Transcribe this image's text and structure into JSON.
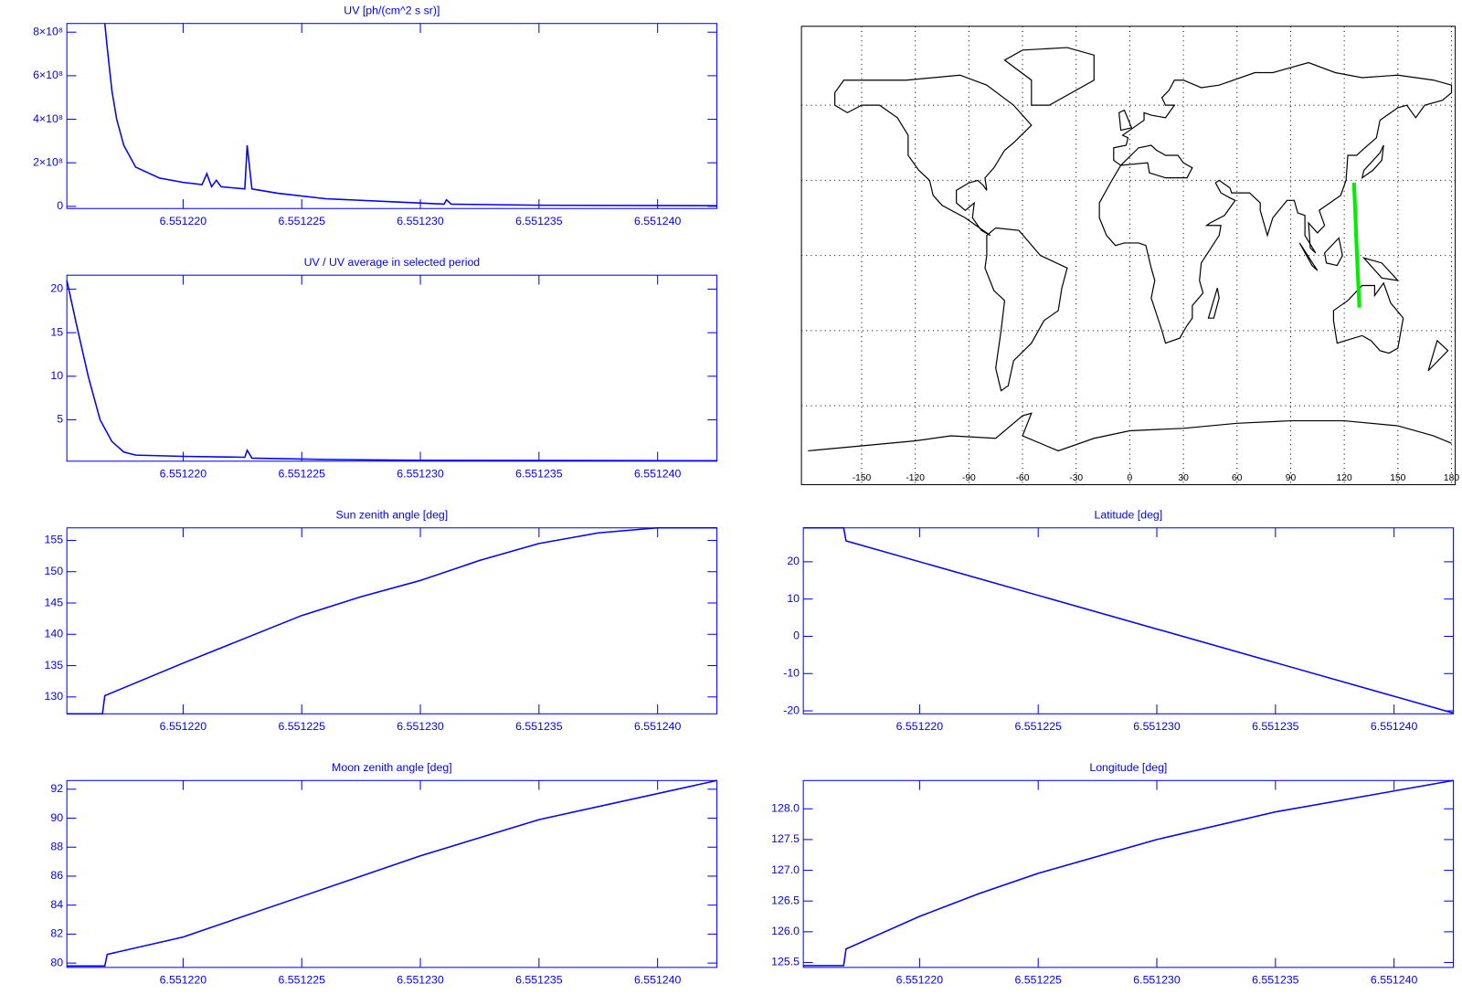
{
  "chart_data": [
    {
      "type": "line",
      "title": "UV [ph/(cm^2 s sr)]",
      "color": "#0000ff",
      "x": [
        6.5512167,
        6.5512168,
        6.551217,
        6.5512172,
        6.5512175,
        6.551218,
        6.551219,
        6.55122,
        6.5512208,
        6.551221,
        6.5512212,
        6.5512214,
        6.5512216,
        6.5512226,
        6.5512227,
        6.5512229,
        6.551224,
        6.551226,
        6.551229,
        6.551231,
        6.5512311,
        6.5512313,
        6.551235,
        6.5512425
      ],
      "values": [
        840000000,
        730000000,
        530000000,
        400000000,
        280000000,
        180000000,
        130000000,
        110000000,
        100000000,
        150000000,
        90000000,
        120000000,
        90000000,
        80000000,
        280000000,
        80000000,
        60000000,
        35000000,
        20000000,
        10000000,
        30000000,
        10000000,
        5000000,
        3000000
      ],
      "xlim": [
        6.5512151,
        6.5512425
      ],
      "xticks": [
        {
          "value": 6.55122,
          "label": "6.551220"
        },
        {
          "value": 6.551225,
          "label": "6.551225"
        },
        {
          "value": 6.55123,
          "label": "6.551230"
        },
        {
          "value": 6.551235,
          "label": "6.551235"
        },
        {
          "value": 6.55124,
          "label": "6.551240"
        }
      ],
      "ylim": [
        -10000000,
        840000000
      ],
      "yticks": [
        0,
        {
          "value": 200000000,
          "label": "2×10⁸"
        },
        {
          "value": 400000000,
          "label": "4×10⁸"
        },
        {
          "value": 600000000,
          "label": "6×10⁸"
        },
        {
          "value": 800000000,
          "label": "8×10⁸"
        }
      ]
    },
    {
      "type": "line",
      "title": "UV / UV average in selected period",
      "color": "#0000ff",
      "x": [
        6.5512151,
        6.5512155,
        6.551216,
        6.5512165,
        6.551217,
        6.5512175,
        6.551218,
        6.55122,
        6.5512226,
        6.5512227,
        6.5512229,
        6.551226,
        6.55123,
        6.5512425
      ],
      "values": [
        21,
        16,
        10,
        5,
        2.5,
        1.3,
        0.95,
        0.8,
        0.7,
        1.5,
        0.6,
        0.45,
        0.35,
        0.3
      ],
      "xlim": [
        6.5512151,
        6.5512425
      ],
      "xticks": [
        {
          "value": 6.55122,
          "label": "6.551220"
        },
        {
          "value": 6.551225,
          "label": "6.551225"
        },
        {
          "value": 6.55123,
          "label": "6.551230"
        },
        {
          "value": 6.551235,
          "label": "6.551235"
        },
        {
          "value": 6.55124,
          "label": "6.551240"
        }
      ],
      "ylim": [
        0.25,
        21.6
      ],
      "yticks": [
        5,
        10,
        15,
        20
      ]
    },
    {
      "type": "line",
      "title": "Sun zenith angle [deg]",
      "color": "#0000ff",
      "x": [
        6.5512151,
        6.5512166,
        6.5512167,
        6.55122,
        6.551225,
        6.5512275,
        6.55123,
        6.5512325,
        6.551235,
        6.5512375,
        6.55124,
        6.5512425
      ],
      "values": [
        127.3,
        127.3,
        130.2,
        135.4,
        143.0,
        146.0,
        148.6,
        151.8,
        154.5,
        156.2,
        157.0,
        157.0
      ],
      "xlim": [
        6.5512151,
        6.5512425
      ],
      "xticks": [
        {
          "value": 6.55122,
          "label": "6.551220"
        },
        {
          "value": 6.551225,
          "label": "6.551225"
        },
        {
          "value": 6.55123,
          "label": "6.551230"
        },
        {
          "value": 6.551235,
          "label": "6.551235"
        },
        {
          "value": 6.55124,
          "label": "6.551240"
        }
      ],
      "ylim": [
        127.3,
        157.0
      ],
      "yticks": [
        130,
        135,
        140,
        145,
        150,
        155
      ]
    },
    {
      "type": "line",
      "title": "Latitude [deg]",
      "color": "#0000ff",
      "x": [
        6.5512151,
        6.5512168,
        6.5512169,
        6.5512425
      ],
      "values": [
        29.1,
        29.1,
        25.6,
        -20.6
      ],
      "xlim": [
        6.5512151,
        6.5512425
      ],
      "xticks": [
        {
          "value": 6.55122,
          "label": "6.551220"
        },
        {
          "value": 6.551225,
          "label": "6.551225"
        },
        {
          "value": 6.55123,
          "label": "6.551230"
        },
        {
          "value": 6.551235,
          "label": "6.551235"
        },
        {
          "value": 6.55124,
          "label": "6.551240"
        }
      ],
      "ylim": [
        -20.8,
        29.1
      ],
      "yticks": [
        -20,
        -10,
        0,
        10,
        20
      ]
    },
    {
      "type": "line",
      "title": "Moon zenith angle [deg]",
      "color": "#0000ff",
      "x": [
        6.5512151,
        6.5512167,
        6.5512168,
        6.55122,
        6.551225,
        6.55123,
        6.551235,
        6.5512425
      ],
      "values": [
        79.8,
        79.8,
        80.6,
        81.8,
        84.6,
        87.4,
        89.9,
        92.6
      ],
      "xlim": [
        6.5512151,
        6.5512425
      ],
      "xticks": [
        {
          "value": 6.55122,
          "label": "6.551220"
        },
        {
          "value": 6.551225,
          "label": "6.551225"
        },
        {
          "value": 6.55123,
          "label": "6.551230"
        },
        {
          "value": 6.551235,
          "label": "6.551235"
        },
        {
          "value": 6.55124,
          "label": "6.551240"
        }
      ],
      "ylim": [
        79.7,
        92.6
      ],
      "yticks": [
        80,
        82,
        84,
        86,
        88,
        90,
        92
      ]
    },
    {
      "type": "line",
      "title": "Longitude [deg]",
      "color": "#0000ff",
      "x": [
        6.5512151,
        6.5512168,
        6.5512169,
        6.55122,
        6.5512225,
        6.551225,
        6.55123,
        6.551235,
        6.5512425
      ],
      "values": [
        125.45,
        125.45,
        125.72,
        126.25,
        126.62,
        126.95,
        127.5,
        127.95,
        128.46
      ],
      "xlim": [
        6.5512151,
        6.5512425
      ],
      "xticks": [
        {
          "value": 6.55122,
          "label": "6.551220"
        },
        {
          "value": 6.551225,
          "label": "6.551225"
        },
        {
          "value": 6.55123,
          "label": "6.551230"
        },
        {
          "value": 6.551235,
          "label": "6.551235"
        },
        {
          "value": 6.55124,
          "label": "6.551240"
        }
      ],
      "ylim": [
        125.42,
        128.46
      ],
      "yticks": [
        125.5,
        {
          "value": 126,
          "label": "126.0"
        },
        126.5,
        {
          "value": 127,
          "label": "127.0"
        },
        127.5,
        {
          "value": 128,
          "label": "128.0"
        }
      ]
    },
    {
      "type": "map",
      "xlim": [
        -180,
        180
      ],
      "ylim": [
        -90,
        90
      ],
      "xticks": [
        -150,
        -120,
        -90,
        -60,
        -30,
        0,
        30,
        60,
        90,
        120,
        150,
        180
      ],
      "ygrid": [
        -60,
        -30,
        0,
        30,
        60
      ],
      "track": {
        "color": "#00ee00",
        "x": [
          125.45,
          126.0,
          127.0,
          128.46
        ],
        "y": [
          29.1,
          20,
          2,
          -20.8
        ]
      }
    }
  ]
}
